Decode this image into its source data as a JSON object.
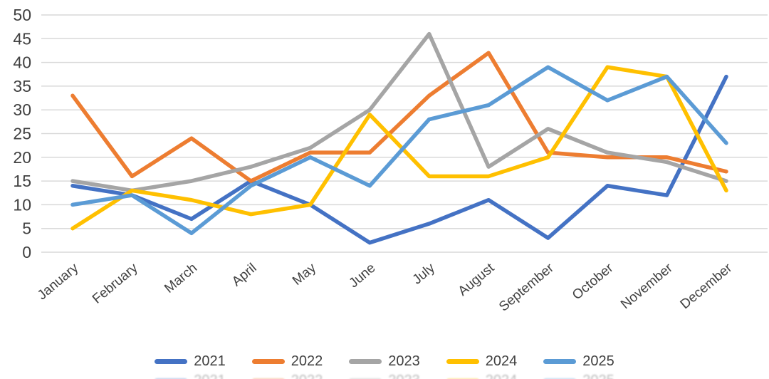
{
  "chart_data": {
    "type": "line",
    "title": "",
    "xlabel": "",
    "ylabel": "",
    "categories": [
      "January",
      "February",
      "March",
      "April",
      "May",
      "June",
      "July",
      "August",
      "September",
      "October",
      "November",
      "December"
    ],
    "series": [
      {
        "name": "2021",
        "color": "#4472C4",
        "values": [
          14,
          12,
          7,
          15,
          10,
          2,
          6,
          11,
          3,
          14,
          12,
          37
        ]
      },
      {
        "name": "2022",
        "color": "#ED7D31",
        "values": [
          33,
          16,
          24,
          15,
          21,
          21,
          33,
          42,
          21,
          20,
          20,
          17
        ]
      },
      {
        "name": "2023",
        "color": "#A5A5A5",
        "values": [
          15,
          13,
          15,
          18,
          22,
          30,
          46,
          18,
          26,
          21,
          19,
          15
        ]
      },
      {
        "name": "2024",
        "color": "#FFC000",
        "values": [
          5,
          13,
          11,
          8,
          10,
          29,
          16,
          16,
          20,
          39,
          37,
          13
        ]
      },
      {
        "name": "2025",
        "color": "#5B9BD5",
        "values": [
          10,
          12,
          4,
          14,
          20,
          14,
          28,
          31,
          39,
          32,
          37,
          23
        ]
      }
    ],
    "ylim": [
      0,
      50
    ],
    "y_ticks": [
      0,
      5,
      10,
      15,
      20,
      25,
      30,
      35,
      40,
      45,
      50
    ],
    "grid": "horizontal",
    "gridline_color": "#D9D9D9",
    "axis_text_color": "#404040",
    "background": "#FFFFFF",
    "legend_position": "bottom",
    "x_label_rotation": -40,
    "line_width": 5.5
  }
}
